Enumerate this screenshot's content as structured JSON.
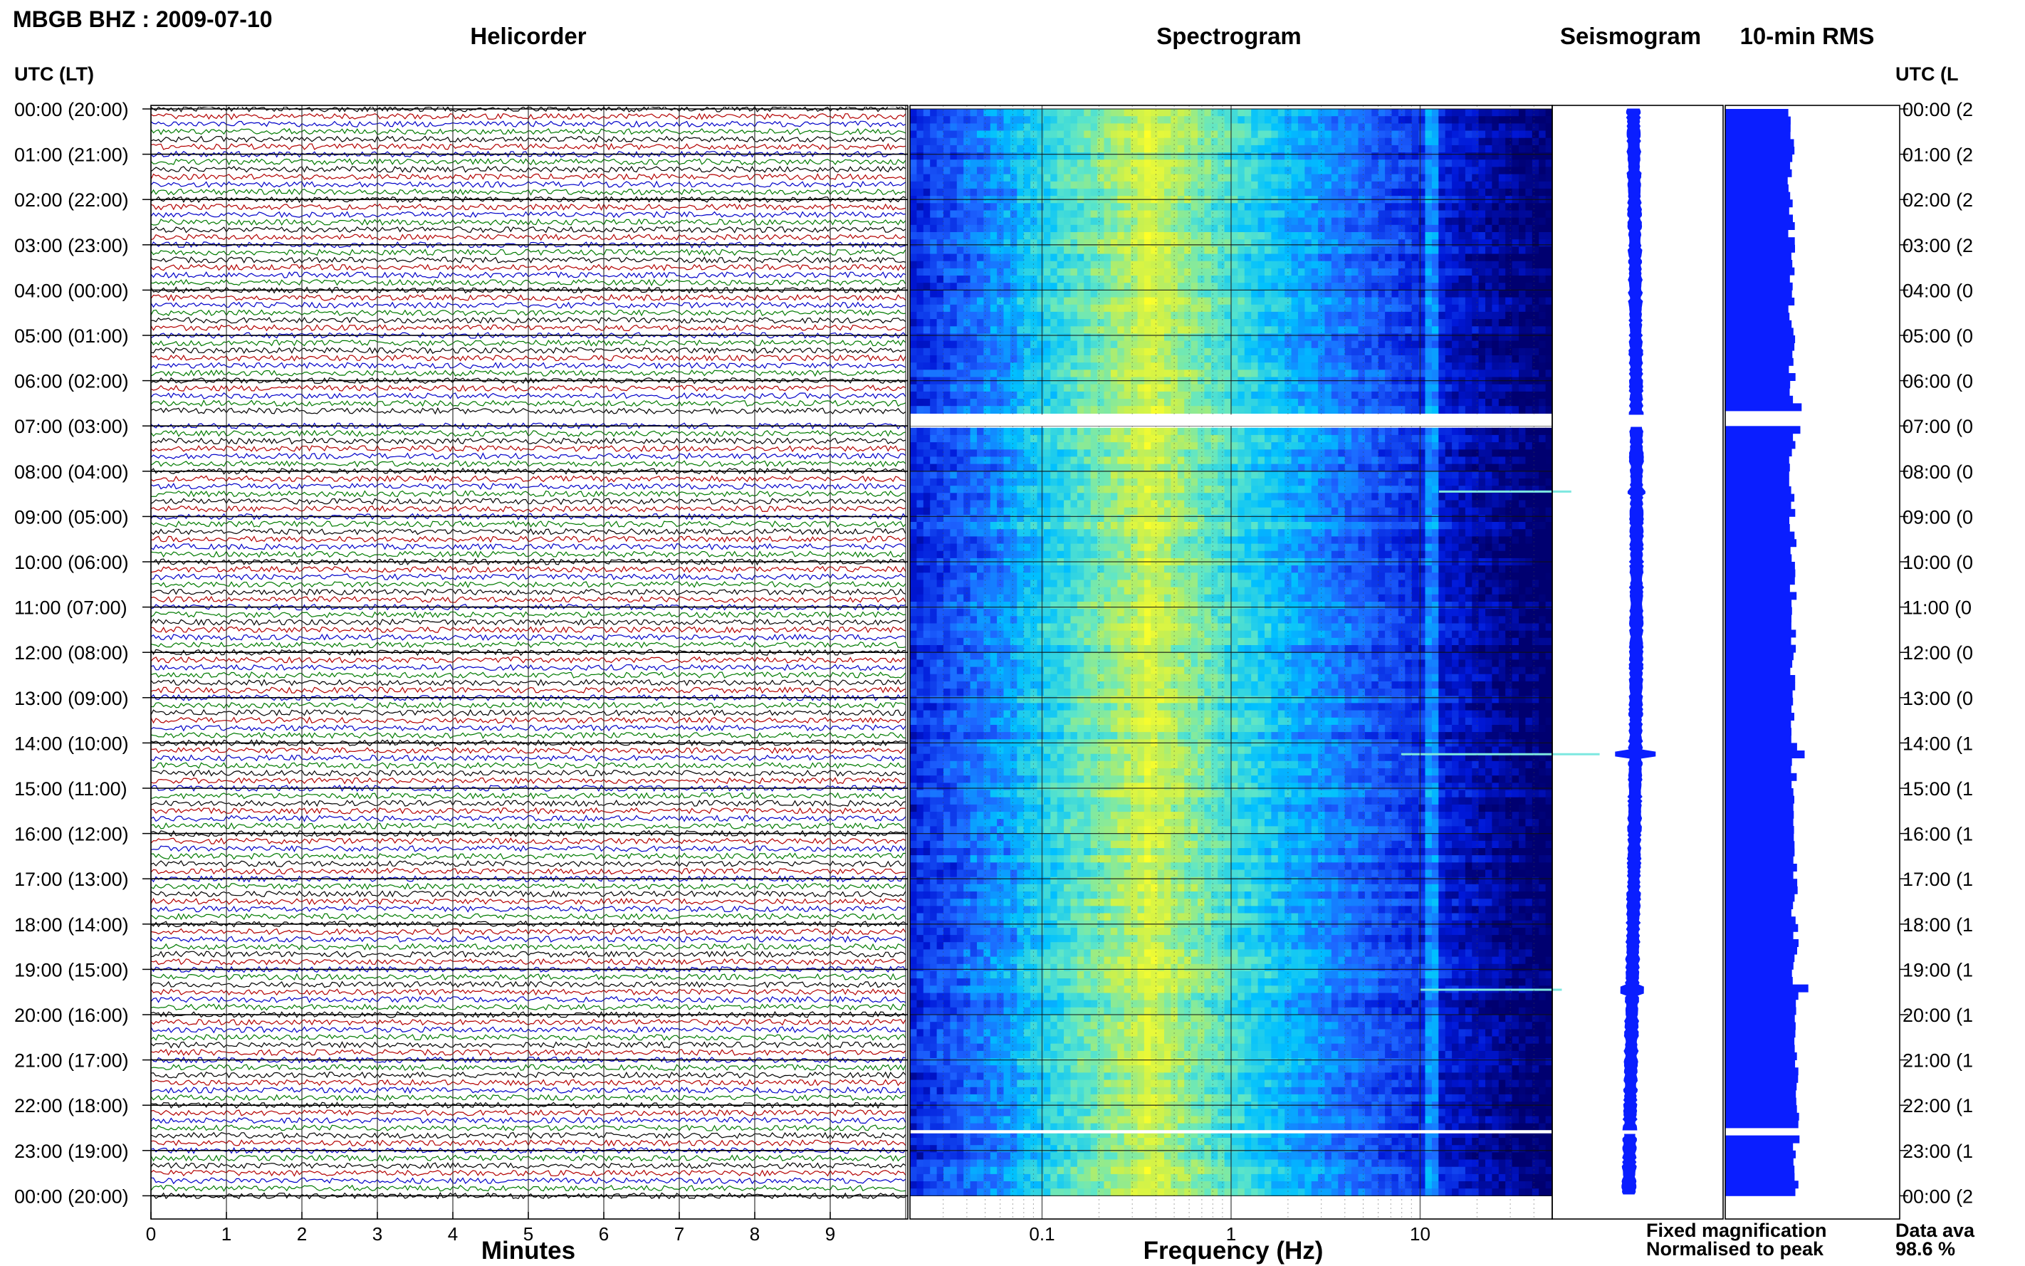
{
  "header": {
    "station_title": "MBGB BHZ : 2009-07-10",
    "axis_left_label": "UTC (LT)",
    "axis_right_label": "UTC (L",
    "panel_titles": [
      "Helicorder",
      "Spectrogram",
      "Seismogram",
      "10-min RMS"
    ]
  },
  "chart_data": {
    "type": "heatmap",
    "title": "MBGB BHZ : 2009-07-10",
    "time_labels": [
      "00:00 (20:00)",
      "01:00 (21:00)",
      "02:00 (22:00)",
      "03:00 (23:00)",
      "04:00 (00:00)",
      "05:00 (01:00)",
      "06:00 (02:00)",
      "07:00 (03:00)",
      "08:00 (04:00)",
      "09:00 (05:00)",
      "10:00 (06:00)",
      "11:00 (07:00)",
      "12:00 (08:00)",
      "13:00 (09:00)",
      "14:00 (10:00)",
      "15:00 (11:00)",
      "16:00 (12:00)",
      "17:00 (13:00)",
      "18:00 (14:00)",
      "19:00 (15:00)",
      "20:00 (16:00)",
      "21:00 (17:00)",
      "22:00 (18:00)",
      "23:00 (19:00)",
      "00:00 (20:00)"
    ],
    "right_time_labels": [
      "00:00 (2",
      "01:00 (2",
      "02:00 (2",
      "03:00 (2",
      "04:00 (0",
      "05:00 (0",
      "06:00 (0",
      "07:00 (0",
      "08:00 (0",
      "09:00 (0",
      "10:00 (0",
      "11:00 (0",
      "12:00 (0",
      "13:00 (0",
      "14:00 (1",
      "15:00 (1",
      "16:00 (1",
      "17:00 (1",
      "18:00 (1",
      "19:00 (1",
      "20:00 (1",
      "21:00 (1",
      "22:00 (1",
      "23:00 (1",
      "00:00 (2"
    ],
    "helicorder": {
      "xlabel": "Minutes",
      "x_ticks": [
        "0",
        "1",
        "2",
        "3",
        "4",
        "5",
        "6",
        "7",
        "8",
        "9"
      ],
      "xlim": [
        0,
        10
      ],
      "lines_per_hour": 6,
      "trace_colors": [
        "#000000",
        "#b30000",
        "#0000c8",
        "#007a00"
      ],
      "events": [
        {
          "hour": 8,
          "minute_start": 3.5,
          "minute_end": 4.5,
          "level": "small"
        },
        {
          "hour": 14,
          "minute_start": 3.5,
          "minute_end": 7.0,
          "level": "large"
        },
        {
          "hour": 19,
          "minute_start": 5.7,
          "minute_end": 7.4,
          "level": "medium"
        }
      ]
    },
    "spectrogram": {
      "xlabel": "Frequency (Hz)",
      "x_tick_labels": [
        "0.1",
        "1",
        "10"
      ],
      "x_scale": "log",
      "xlim_hz": [
        0.02,
        50
      ],
      "peak_frequency_hz": 0.35,
      "colormap": [
        "#000070",
        "#0018d8",
        "#1e64ff",
        "#00c0ff",
        "#5ee6c8",
        "#c8f050",
        "#ffff28"
      ]
    },
    "data_gaps_utc_hour": [
      [
        6.75,
        7.0
      ],
      [
        22.55,
        22.62
      ]
    ],
    "seismogram": {
      "color": "#0a1eff"
    },
    "rms": {
      "color": "#0a1eff",
      "interval_minutes": 10
    },
    "legend": {
      "fixed_label": "Fixed magnification",
      "fixed_color": "#0a1eff",
      "normalised_label": "Normalised to peak",
      "normalised_color": "#ff0000",
      "data_label": "Data ava",
      "data_value": "98.6 %"
    }
  }
}
